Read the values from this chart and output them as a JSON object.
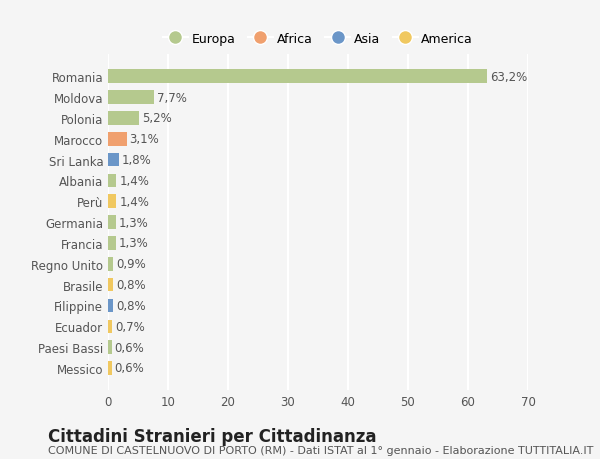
{
  "countries": [
    "Romania",
    "Moldova",
    "Polonia",
    "Marocco",
    "Sri Lanka",
    "Albania",
    "Perù",
    "Germania",
    "Francia",
    "Regno Unito",
    "Brasile",
    "Filippine",
    "Ecuador",
    "Paesi Bassi",
    "Messico"
  ],
  "values": [
    63.2,
    7.7,
    5.2,
    3.1,
    1.8,
    1.4,
    1.4,
    1.3,
    1.3,
    0.9,
    0.8,
    0.8,
    0.7,
    0.6,
    0.6
  ],
  "labels": [
    "63,2%",
    "7,7%",
    "5,2%",
    "3,1%",
    "1,8%",
    "1,4%",
    "1,4%",
    "1,3%",
    "1,3%",
    "0,9%",
    "0,8%",
    "0,8%",
    "0,7%",
    "0,6%",
    "0,6%"
  ],
  "continents": [
    "Europa",
    "Europa",
    "Europa",
    "Africa",
    "Asia",
    "Europa",
    "America",
    "Europa",
    "Europa",
    "Europa",
    "America",
    "Asia",
    "America",
    "Europa",
    "America"
  ],
  "continent_colors": {
    "Europa": "#b5c98e",
    "Africa": "#f0a06e",
    "Asia": "#6b96c8",
    "America": "#f0c860"
  },
  "legend_order": [
    "Europa",
    "Africa",
    "Asia",
    "America"
  ],
  "title": "Cittadini Stranieri per Cittadinanza",
  "subtitle": "COMUNE DI CASTELNUOVO DI PORTO (RM) - Dati ISTAT al 1° gennaio - Elaborazione TUTTITALIA.IT",
  "xlim": [
    0,
    70
  ],
  "xticks": [
    0,
    10,
    20,
    30,
    40,
    50,
    60,
    70
  ],
  "background_color": "#f5f5f5",
  "grid_color": "#ffffff",
  "bar_height": 0.65,
  "label_fontsize": 8.5,
  "tick_fontsize": 8.5,
  "title_fontsize": 12,
  "subtitle_fontsize": 8
}
